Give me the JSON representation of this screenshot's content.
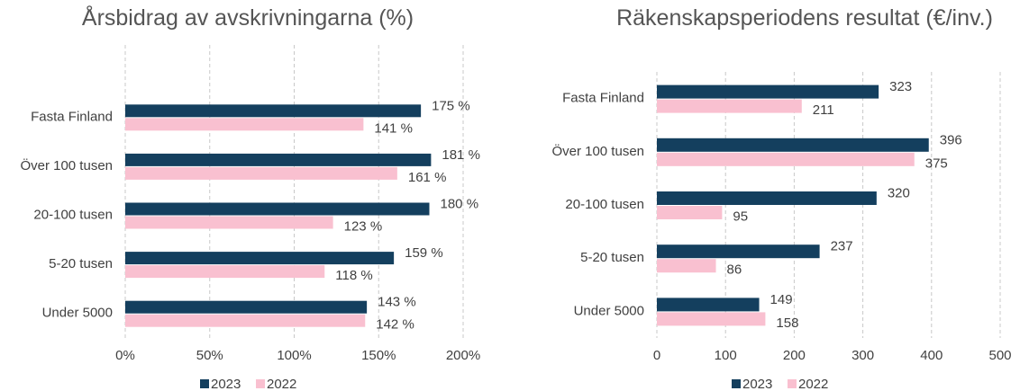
{
  "chart_data": [
    {
      "type": "bar",
      "orientation": "horizontal",
      "title": "Årsbidrag av avskrivningarna (%)",
      "categories": [
        "Fasta Finland",
        "Över 100 tusen",
        "20-100 tusen",
        "5-20 tusen",
        "Under 5000"
      ],
      "series": [
        {
          "name": "2023",
          "color": "#143f5e",
          "values": [
            175,
            181,
            180,
            159,
            143
          ],
          "value_labels": [
            "175 %",
            "181 %",
            "180 %",
            "159 %",
            "143 %"
          ]
        },
        {
          "name": "2022",
          "color": "#f9c0d0",
          "values": [
            141,
            161,
            123,
            118,
            142
          ],
          "value_labels": [
            "141 %",
            "161 %",
            "123 %",
            "118 %",
            "142 %"
          ]
        }
      ],
      "xlim": [
        0,
        200
      ],
      "xticks": [
        {
          "value": 0,
          "label": "0%"
        },
        {
          "value": 50,
          "label": "50%"
        },
        {
          "value": 100,
          "label": "100%"
        },
        {
          "value": 150,
          "label": "150%"
        },
        {
          "value": 200,
          "label": "200%"
        }
      ],
      "grid": true,
      "legend": "bottom"
    },
    {
      "type": "bar",
      "orientation": "horizontal",
      "title": "Räkenskapsperiodens resultat (€/inv.)",
      "categories": [
        "Fasta Finland",
        "Över 100 tusen",
        "20-100 tusen",
        "5-20 tusen",
        "Under 5000"
      ],
      "series": [
        {
          "name": "2023",
          "color": "#143f5e",
          "values": [
            323,
            396,
            320,
            237,
            149
          ]
        },
        {
          "name": "2022",
          "color": "#f9c0d0",
          "values": [
            211,
            375,
            95,
            86,
            158
          ]
        }
      ],
      "xlim": [
        0,
        500
      ],
      "xticks": [
        0,
        100,
        200,
        300,
        400,
        500
      ],
      "grid": true,
      "legend": "bottom"
    }
  ]
}
